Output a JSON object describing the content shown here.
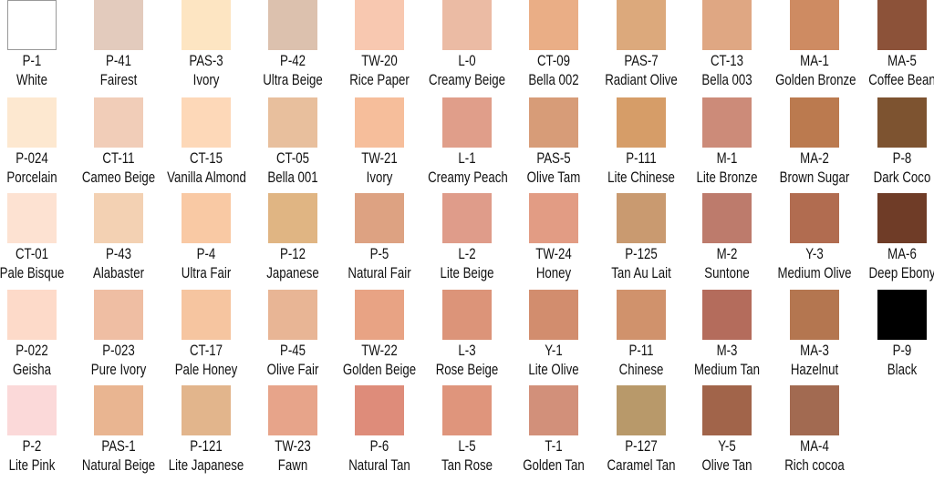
{
  "swatches": [
    [
      {
        "code": "P-1",
        "name": "White",
        "color": "#ffffff"
      },
      {
        "code": "P-41",
        "name": "Fairest",
        "color": "#e3cbbd"
      },
      {
        "code": "PAS-3",
        "name": "Ivory",
        "color": "#fde5c2"
      },
      {
        "code": "P-42",
        "name": "Ultra Beige",
        "color": "#dcc1ae"
      },
      {
        "code": "TW-20",
        "name": "Rice Paper",
        "color": "#f8c8b0"
      },
      {
        "code": "L-0",
        "name": "Creamy Beige",
        "color": "#ebbba4"
      },
      {
        "code": "CT-09",
        "name": "Bella 002",
        "color": "#eaae86"
      },
      {
        "code": "PAS-7",
        "name": "Radiant Olive",
        "color": "#dca97c"
      },
      {
        "code": "CT-13",
        "name": "Bella 003",
        "color": "#dfa783"
      },
      {
        "code": "MA-1",
        "name": "Golden Bronze",
        "color": "#ce8b62"
      },
      {
        "code": "MA-5",
        "name": "Coffee Bean",
        "color": "#8c5239"
      }
    ],
    [
      {
        "code": "P-024",
        "name": "Porcelain",
        "color": "#fde8d0"
      },
      {
        "code": "CT-11",
        "name": "Cameo Beige",
        "color": "#f1cdb8"
      },
      {
        "code": "CT-15",
        "name": "Vanilla Almond",
        "color": "#fdd8b8"
      },
      {
        "code": "CT-05",
        "name": "Bella 001",
        "color": "#e8bf9d"
      },
      {
        "code": "TW-21",
        "name": "Ivory",
        "color": "#f6be9b"
      },
      {
        "code": "L-1",
        "name": "Creamy Peach",
        "color": "#e09e8a"
      },
      {
        "code": "PAS-5",
        "name": "Olive Tam",
        "color": "#d79c78"
      },
      {
        "code": "P-111",
        "name": "Lite Chinese",
        "color": "#d69d68"
      },
      {
        "code": "M-1",
        "name": "Lite Bronze",
        "color": "#cc8b79"
      },
      {
        "code": "MA-2",
        "name": "Brown Sugar",
        "color": "#bb7a4f"
      },
      {
        "code": "P-8",
        "name": "Dark Coco",
        "color": "#7d5330"
      }
    ],
    [
      {
        "code": "CT-01",
        "name": "Pale Bisque",
        "color": "#fde2d2"
      },
      {
        "code": "P-43",
        "name": "Alabaster",
        "color": "#f3d1b3"
      },
      {
        "code": "P-4",
        "name": "Ultra Fair",
        "color": "#f9c9a4"
      },
      {
        "code": "P-12",
        "name": "Japanese",
        "color": "#e0b583"
      },
      {
        "code": "P-5",
        "name": "Natural Fair",
        "color": "#dda282"
      },
      {
        "code": "L-2",
        "name": "Lite Beige",
        "color": "#df9c8a"
      },
      {
        "code": "TW-24",
        "name": "Honey",
        "color": "#e29c84"
      },
      {
        "code": "P-125",
        "name": "Tan Au Lait",
        "color": "#c99a70"
      },
      {
        "code": "M-2",
        "name": "Suntone",
        "color": "#bd7b6c"
      },
      {
        "code": "Y-3",
        "name": "Medium Olive",
        "color": "#b16c50"
      },
      {
        "code": "MA-6",
        "name": "Deep Ebony",
        "color": "#6f3c27"
      }
    ],
    [
      {
        "code": "P-022",
        "name": "Geisha",
        "color": "#fddac9"
      },
      {
        "code": "P-023",
        "name": "Pure Ivory",
        "color": "#efbea3"
      },
      {
        "code": "CT-17",
        "name": "Pale Honey",
        "color": "#f6c5a0"
      },
      {
        "code": "P-45",
        "name": "Olive Fair",
        "color": "#e8b595"
      },
      {
        "code": "TW-22",
        "name": "Golden Beige",
        "color": "#e8a384"
      },
      {
        "code": "L-3",
        "name": "Rose Beige",
        "color": "#dc9479"
      },
      {
        "code": "Y-1",
        "name": "Lite Olive",
        "color": "#d28d6e"
      },
      {
        "code": "P-11",
        "name": "Chinese",
        "color": "#d0926c"
      },
      {
        "code": "M-3",
        "name": "Medium Tan",
        "color": "#b46c5c"
      },
      {
        "code": "MA-3",
        "name": "Hazelnut",
        "color": "#b47650"
      },
      {
        "code": "P-9",
        "name": "Black",
        "color": "#000000"
      }
    ],
    [
      {
        "code": "P-2",
        "name": "Lite Pink",
        "color": "#fbd9d9"
      },
      {
        "code": "PAS-1",
        "name": "Natural Beige",
        "color": "#e9b591"
      },
      {
        "code": "P-121",
        "name": "Lite Japanese",
        "color": "#e2b58c"
      },
      {
        "code": "TW-23",
        "name": "Fawn",
        "color": "#e7a48a"
      },
      {
        "code": "P-6",
        "name": "Natural Tan",
        "color": "#de8c7a"
      },
      {
        "code": "L-5",
        "name": "Tan Rose",
        "color": "#df957c"
      },
      {
        "code": "T-1",
        "name": "Golden Tan",
        "color": "#d2907a"
      },
      {
        "code": "P-127",
        "name": "Caramel Tan",
        "color": "#b8996a"
      },
      {
        "code": "Y-5",
        "name": "Olive Tan",
        "color": "#a1644a"
      },
      {
        "code": "MA-4",
        "name": "Rich cocoa",
        "color": "#a26a51"
      }
    ]
  ]
}
